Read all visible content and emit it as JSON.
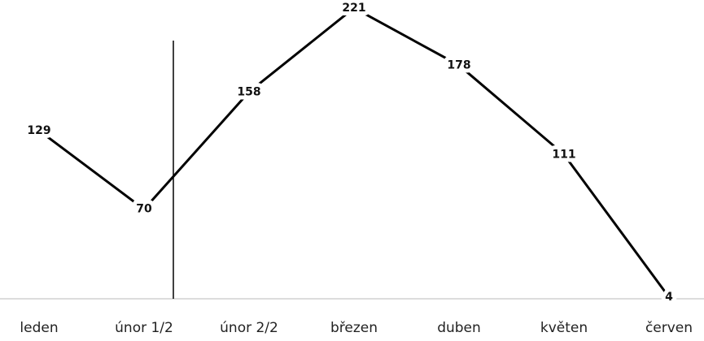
{
  "chart_data": {
    "type": "line",
    "categories": [
      "leden",
      "únor 1/2",
      "únor 2/2",
      "březen",
      "duben",
      "květen",
      "červen"
    ],
    "values": [
      129,
      70,
      158,
      221,
      178,
      111,
      4
    ],
    "color": "#000000",
    "ylim": [
      0,
      227
    ]
  }
}
